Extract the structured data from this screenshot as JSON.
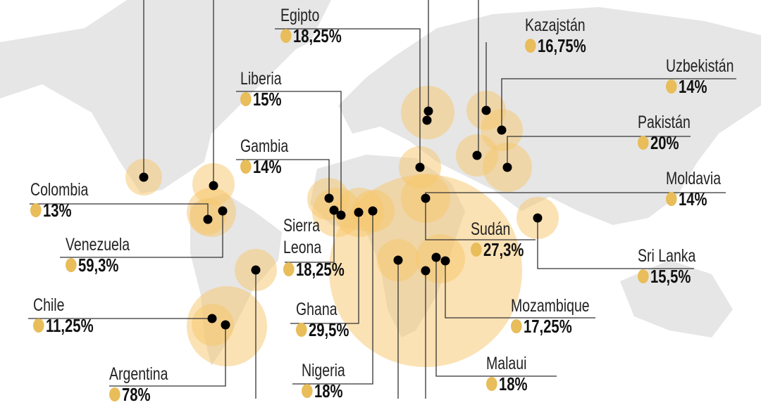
{
  "colors": {
    "bubble": "#f7c66a",
    "marker": "#e8bd5a",
    "land": "#e6e6e6",
    "leader": "#333333"
  },
  "legend_icon": "circle-marker",
  "countries": [
    {
      "name": "Egipto",
      "value": "18,25%"
    },
    {
      "name": "Kazajstán",
      "value": "16,75%"
    },
    {
      "name": "Uzbekistán",
      "value": "14%"
    },
    {
      "name": "Pakistán",
      "value": "20%"
    },
    {
      "name": "Moldavia",
      "value": "14%"
    },
    {
      "name": "Sri Lanka",
      "value": "15,5%"
    },
    {
      "name": "Sudán",
      "value": "27,3%"
    },
    {
      "name": "Mozambique",
      "value": "17,25%"
    },
    {
      "name": "Malaui",
      "value": "18%"
    },
    {
      "name": "Nigeria",
      "value": "18%"
    },
    {
      "name": "Ghana",
      "value": "29,5%"
    },
    {
      "name": "Sierra Leona",
      "value": "18,25%"
    },
    {
      "name": "Gambia",
      "value": "14%"
    },
    {
      "name": "Liberia",
      "value": "15%"
    },
    {
      "name": "Colombia",
      "value": "13%"
    },
    {
      "name": "Venezuela",
      "value": "59,3%"
    },
    {
      "name": "Chile",
      "value": "11,25%"
    },
    {
      "name": "Argentina",
      "value": "78%"
    }
  ]
}
